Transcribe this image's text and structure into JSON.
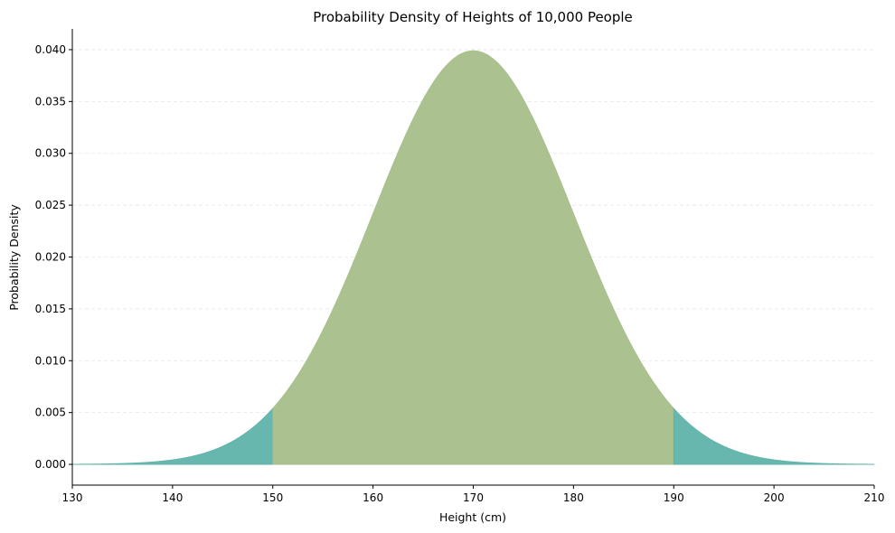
{
  "chart_data": {
    "type": "area",
    "title": "Probability Density of Heights of 10,000 People",
    "xlabel": "Height (cm)",
    "ylabel": "Probability Density",
    "distribution": {
      "kind": "normal",
      "mean": 170,
      "std": 10
    },
    "xlim": [
      130,
      210
    ],
    "ylim": [
      -0.002,
      0.042
    ],
    "x_ticks": [
      130,
      140,
      150,
      160,
      170,
      180,
      190,
      200,
      210
    ],
    "y_ticks": [
      0.0,
      0.005,
      0.01,
      0.015,
      0.02,
      0.025,
      0.03,
      0.035,
      0.04
    ],
    "y_tick_labels": [
      "0.000",
      "0.005",
      "0.010",
      "0.015",
      "0.020",
      "0.025",
      "0.030",
      "0.035",
      "0.040"
    ],
    "grid": "horizontal-dashed",
    "series": [
      {
        "range": [
          130,
          150
        ],
        "color": "#5fb3aa"
      },
      {
        "range": [
          150,
          190
        ],
        "color": "#a6bf8a"
      },
      {
        "range": [
          190,
          210
        ],
        "color": "#5fb3aa"
      }
    ],
    "peak": {
      "x": 170,
      "y": 0.0399
    },
    "boundary_values": [
      {
        "x": 150,
        "y": 0.0054
      },
      {
        "x": 190,
        "y": 0.0054
      }
    ]
  }
}
